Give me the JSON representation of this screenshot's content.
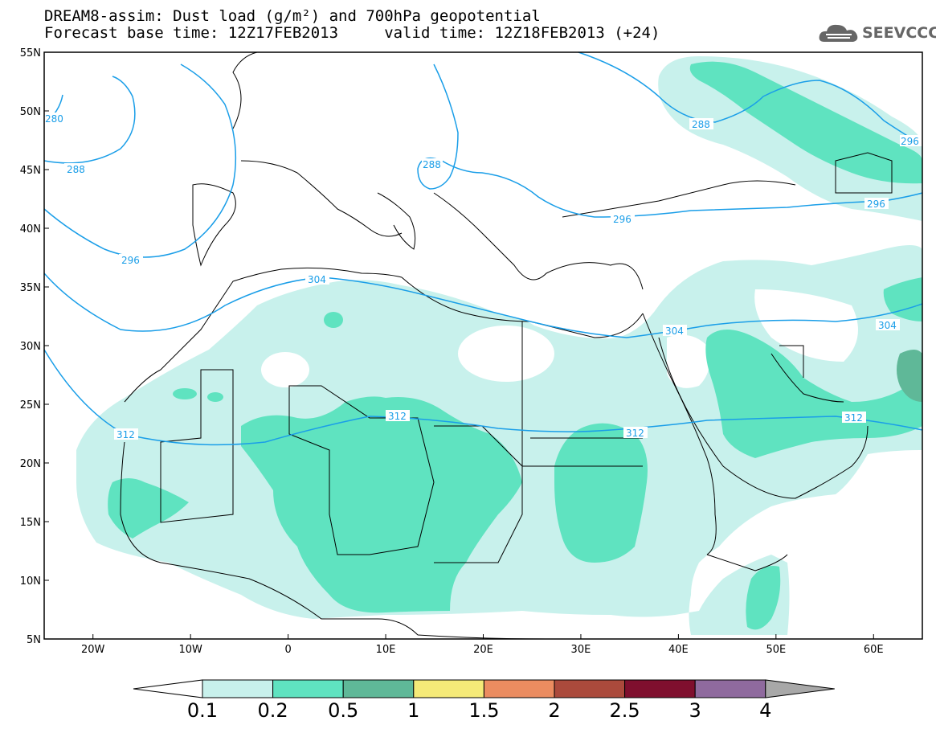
{
  "title": {
    "line1": "DREAM8-assim: Dust load (g/m²) and 700hPa geopotential",
    "line2": "Forecast base time: 12Z17FEB2013     valid time: 12Z18FEB2013 (+24)"
  },
  "logo": {
    "text": "SEEVCCC",
    "icon": "cloud-logo-icon"
  },
  "map": {
    "lon_range": [
      -25,
      65
    ],
    "lat_range": [
      5,
      55
    ],
    "lat_ticks": [
      "55N",
      "50N",
      "45N",
      "40N",
      "35N",
      "30N",
      "25N",
      "20N",
      "15N",
      "10N",
      "5N"
    ],
    "lon_ticks": [
      "20W",
      "10W",
      "0",
      "10E",
      "20E",
      "30E",
      "40E",
      "50E",
      "60E"
    ],
    "contour_color": "#1a9ee8",
    "contour_labels": [
      "280",
      "288",
      "296",
      "304",
      "312",
      "288",
      "296",
      "296",
      "304",
      "312",
      "312",
      "288",
      "296",
      "312",
      "304"
    ]
  },
  "colorbar": {
    "labels": [
      "0.1",
      "0.2",
      "0.5",
      "1",
      "1.5",
      "2",
      "2.5",
      "3",
      "4"
    ],
    "colors": [
      "#c8f1ec",
      "#5fe3c0",
      "#5fb898",
      "#f5ea78",
      "#eb8c60",
      "#ab4a3c",
      "#7f0f2e",
      "#8f6a9e",
      "#a8a8a8"
    ],
    "below_color": "#ffffff"
  }
}
